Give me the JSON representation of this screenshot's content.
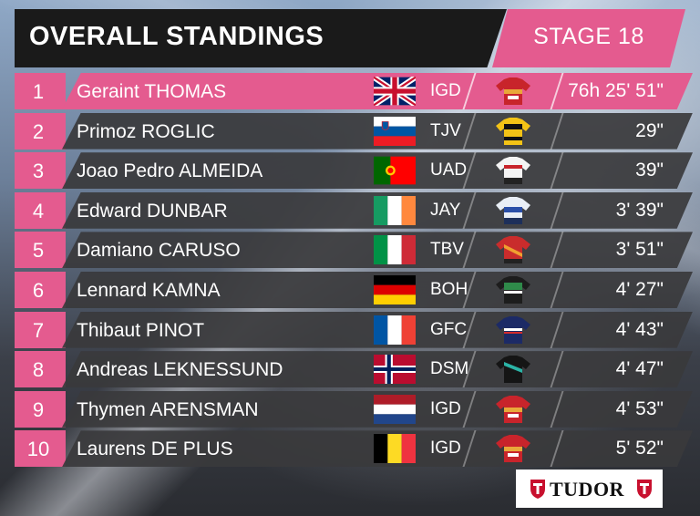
{
  "header": {
    "title": "OVERALL STANDINGS",
    "stage": "STAGE 18"
  },
  "colors": {
    "accent": "#e45b8f",
    "header_bg": "#1a1a1a",
    "row_bg": "#3a3a3c"
  },
  "rows": [
    {
      "pos": "1",
      "name": "Geraint THOMAS",
      "flag": "gb-flag",
      "team": "IGD",
      "jersey": "red-gold-jersey-icon",
      "time": "76h 25' 51\""
    },
    {
      "pos": "2",
      "name": "Primoz ROGLIC",
      "flag": "si-flag",
      "team": "TJV",
      "jersey": "yellow-black-jersey-icon",
      "time": "29\""
    },
    {
      "pos": "3",
      "name": "Joao Pedro ALMEIDA",
      "flag": "pt-flag",
      "team": "UAD",
      "jersey": "white-red-jersey-icon",
      "time": "39\""
    },
    {
      "pos": "4",
      "name": "Edward DUNBAR",
      "flag": "ie-flag",
      "team": "JAY",
      "jersey": "blue-white-jersey-icon",
      "time": "3' 39\""
    },
    {
      "pos": "5",
      "name": "Damiano CARUSO",
      "flag": "it-flag",
      "team": "TBV",
      "jersey": "red-orange-jersey-icon",
      "time": "3' 51\""
    },
    {
      "pos": "6",
      "name": "Lennard KAMNA",
      "flag": "de-flag",
      "team": "BOH",
      "jersey": "green-black-jersey-icon",
      "time": "4' 27\""
    },
    {
      "pos": "7",
      "name": "Thibaut PINOT",
      "flag": "fr-flag",
      "team": "GFC",
      "jersey": "navy-jersey-icon",
      "time": "4' 43\""
    },
    {
      "pos": "8",
      "name": "Andreas LEKNESSUND",
      "flag": "no-flag",
      "team": "DSM",
      "jersey": "black-teal-jersey-icon",
      "time": "4' 47\""
    },
    {
      "pos": "9",
      "name": "Thymen ARENSMAN",
      "flag": "nl-flag",
      "team": "IGD",
      "jersey": "red-gold-jersey-icon",
      "time": "4' 53\""
    },
    {
      "pos": "10",
      "name": "Laurens DE PLUS",
      "flag": "be-flag",
      "team": "IGD",
      "jersey": "red-gold-jersey-icon",
      "time": "5' 52\""
    }
  ],
  "sponsor": {
    "name": "TUDOR"
  }
}
